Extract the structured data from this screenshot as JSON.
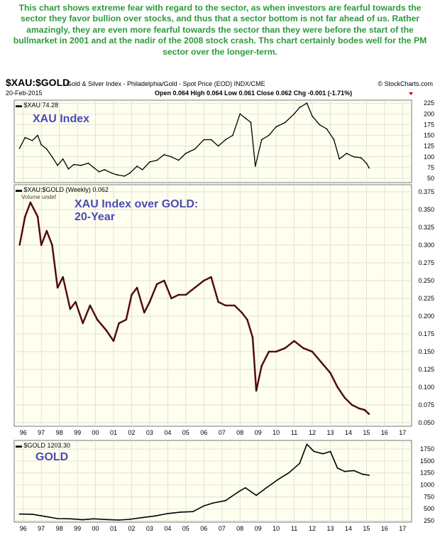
{
  "commentary": "This chart shows extreme fear with regard to the sector, as when investors are fearful towards the sector they favor bullion over stocks, and thus that a sector bottom is not far ahead of us. Rather amazingly, they are even more fearful towards the sector than they were before the start of the bullmarket in 2001 and at the nadir of the 2008 stock crash. Ths chart certainly bodes well for the PM sector over the longer-term.",
  "header": {
    "symbol": "$XAU:$GOLD",
    "name": "Gold & Silver Index - Philadelphia/Gold - Spot Price (EOD) INDX/CME",
    "source": "© StockCharts.com",
    "date": "20-Feb-2015",
    "ohlc_line": "Open 0.064 High 0.064 Low 0.061 Close 0.062 Chg -0.001 (-1.71%)"
  },
  "colors": {
    "commentary": "#2d9a3e",
    "panel_bg": "#fffff0",
    "grid": "#d8d8cc",
    "line": "#000000",
    "bar_red": "#8b1a1a",
    "label_blue": "#4a4ab8",
    "down_triangle": "#c00000"
  },
  "chart_data": [
    {
      "type": "line",
      "panel": "top",
      "legend": "$XAU 74.28",
      "annotation": "XAU Index",
      "x_ticks": [
        "96",
        "97",
        "98",
        "99",
        "00",
        "01",
        "02",
        "03",
        "04",
        "05",
        "06",
        "07",
        "08",
        "09",
        "10",
        "11",
        "12",
        "13",
        "14",
        "15",
        "16",
        "17"
      ],
      "y_ticks": [
        225,
        200,
        175,
        150,
        125,
        100,
        75,
        50
      ],
      "ylim": [
        40,
        232
      ],
      "x": [
        1995.8,
        1996.1,
        1996.5,
        1996.8,
        1997.0,
        1997.3,
        1997.6,
        1997.9,
        1998.2,
        1998.5,
        1998.8,
        1999.2,
        1999.6,
        1999.9,
        2000.2,
        2000.5,
        2000.9,
        2001.2,
        2001.6,
        2001.9,
        2002.3,
        2002.6,
        2003.0,
        2003.4,
        2003.8,
        2004.2,
        2004.6,
        2005.0,
        2005.5,
        2006.0,
        2006.4,
        2006.8,
        2007.2,
        2007.6,
        2008.0,
        2008.3,
        2008.6,
        2008.85,
        2009.2,
        2009.6,
        2010.0,
        2010.5,
        2011.0,
        2011.3,
        2011.7,
        2012.0,
        2012.4,
        2012.8,
        2013.2,
        2013.5,
        2013.9,
        2014.3,
        2014.7,
        2015.0,
        2015.15
      ],
      "values": [
        120,
        145,
        138,
        150,
        128,
        118,
        100,
        80,
        95,
        72,
        82,
        80,
        85,
        75,
        65,
        70,
        62,
        58,
        55,
        62,
        78,
        70,
        88,
        92,
        105,
        100,
        92,
        108,
        118,
        140,
        140,
        125,
        140,
        150,
        200,
        190,
        180,
        78,
        140,
        150,
        170,
        180,
        200,
        215,
        225,
        195,
        175,
        165,
        140,
        95,
        108,
        100,
        98,
        85,
        74
      ]
    },
    {
      "type": "line",
      "panel": "middle",
      "legend": "$XAU:$GOLD (Weekly) 0.062",
      "volume_note": "Volume undef",
      "annotation": "XAU Index over GOLD: 20-Year",
      "x_ticks": [
        "96",
        "97",
        "98",
        "99",
        "00",
        "01",
        "02",
        "03",
        "04",
        "05",
        "06",
        "07",
        "08",
        "09",
        "10",
        "11",
        "12",
        "13",
        "14",
        "15",
        "16",
        "17"
      ],
      "y_ticks": [
        0.375,
        0.35,
        0.325,
        0.3,
        0.275,
        0.25,
        0.225,
        0.2,
        0.175,
        0.15,
        0.125,
        0.1,
        0.075,
        0.05
      ],
      "ylim": [
        0.045,
        0.385
      ],
      "x": [
        1995.8,
        1996.1,
        1996.4,
        1996.8,
        1997.0,
        1997.3,
        1997.6,
        1997.9,
        1998.2,
        1998.6,
        1998.9,
        1999.3,
        1999.7,
        2000.1,
        2000.6,
        2001.0,
        2001.3,
        2001.7,
        2002.0,
        2002.3,
        2002.7,
        2003.0,
        2003.4,
        2003.8,
        2004.2,
        2004.6,
        2005.0,
        2005.5,
        2006.0,
        2006.4,
        2006.8,
        2007.2,
        2007.7,
        2008.1,
        2008.4,
        2008.7,
        2008.9,
        2009.2,
        2009.6,
        2010.0,
        2010.5,
        2011.0,
        2011.5,
        2012.0,
        2012.5,
        2013.0,
        2013.4,
        2013.8,
        2014.2,
        2014.6,
        2014.9,
        2015.15
      ],
      "values": [
        0.3,
        0.34,
        0.36,
        0.34,
        0.3,
        0.32,
        0.3,
        0.24,
        0.255,
        0.21,
        0.22,
        0.19,
        0.215,
        0.195,
        0.18,
        0.165,
        0.19,
        0.195,
        0.23,
        0.24,
        0.205,
        0.22,
        0.245,
        0.25,
        0.225,
        0.23,
        0.23,
        0.24,
        0.25,
        0.255,
        0.22,
        0.215,
        0.215,
        0.205,
        0.195,
        0.17,
        0.095,
        0.13,
        0.15,
        0.15,
        0.155,
        0.165,
        0.155,
        0.15,
        0.135,
        0.12,
        0.1,
        0.085,
        0.075,
        0.07,
        0.068,
        0.062
      ]
    },
    {
      "type": "line",
      "panel": "bottom",
      "legend": "$GOLD 1203.30",
      "annotation": "GOLD",
      "x_ticks": [
        "96",
        "97",
        "98",
        "99",
        "00",
        "01",
        "02",
        "03",
        "04",
        "05",
        "06",
        "07",
        "08",
        "09",
        "10",
        "11",
        "12",
        "13",
        "14",
        "15",
        "16",
        "17"
      ],
      "y_ticks": [
        1750,
        1500,
        1250,
        1000,
        750,
        500,
        250
      ],
      "ylim": [
        220,
        1930
      ],
      "x": [
        1995.8,
        1996.5,
        1997.2,
        1997.9,
        1998.6,
        1999.3,
        1999.9,
        2000.6,
        2001.3,
        2001.9,
        2002.6,
        2003.3,
        2004.0,
        2004.7,
        2005.4,
        2006.0,
        2006.5,
        2007.2,
        2007.9,
        2008.3,
        2008.9,
        2009.5,
        2010.1,
        2010.7,
        2011.3,
        2011.7,
        2012.1,
        2012.6,
        2013.0,
        2013.4,
        2013.8,
        2014.3,
        2014.8,
        2015.15
      ],
      "values": [
        390,
        385,
        340,
        295,
        290,
        270,
        290,
        275,
        265,
        280,
        315,
        350,
        400,
        430,
        440,
        560,
        620,
        670,
        850,
        940,
        780,
        950,
        1110,
        1250,
        1450,
        1850,
        1700,
        1650,
        1700,
        1350,
        1280,
        1300,
        1220,
        1203
      ]
    }
  ]
}
